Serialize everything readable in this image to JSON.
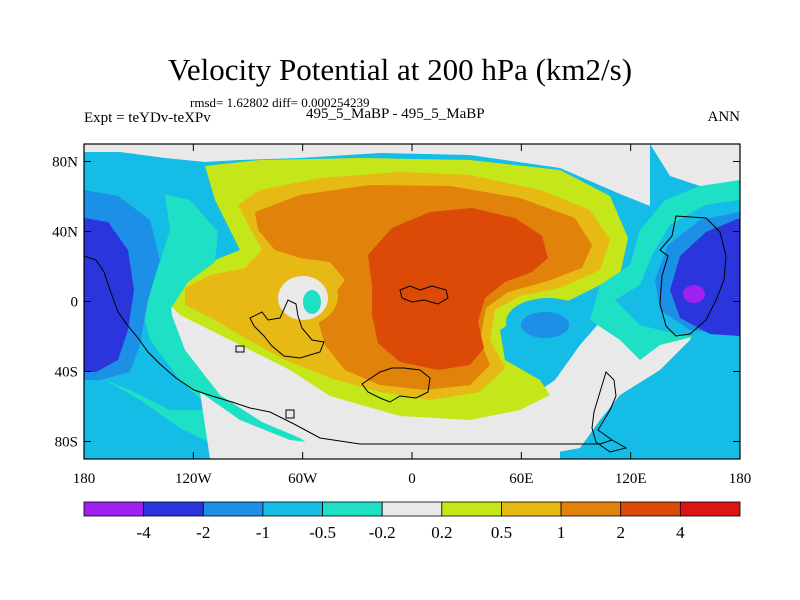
{
  "header": {
    "title": "Velocity Potential at 200 hPa (km2/s)",
    "stats": "rmsd= 1.62802 diff= 0.000254239",
    "experiment": "Expt = teYDv-teXPv",
    "runs": "495_5_MaBP - 495_5_MaBP",
    "season": "ANN"
  },
  "chart_data": {
    "type": "heatmap",
    "title": "Velocity Potential at 200 hPa (km2/s)",
    "xlabel": "",
    "ylabel": "",
    "x_ticks": [
      "180",
      "120W",
      "60W",
      "0",
      "60E",
      "120E",
      "180"
    ],
    "y_ticks": [
      "80N",
      "40N",
      "0",
      "40S",
      "80S"
    ],
    "xlim": [
      -180,
      180
    ],
    "ylim": [
      -90,
      90
    ],
    "colorbar": {
      "levels": [
        "-4",
        "-2",
        "-1",
        "-0.5",
        "-0.2",
        "0.2",
        "0.5",
        "1",
        "2",
        "4"
      ],
      "colors": [
        "#a020f0",
        "#2b35dc",
        "#1c8fe6",
        "#14bce6",
        "#1ee0c4",
        "#e9e9e9",
        "#c5e619",
        "#e6b914",
        "#e1820a",
        "#dc4a08",
        "#dc1414"
      ]
    }
  }
}
